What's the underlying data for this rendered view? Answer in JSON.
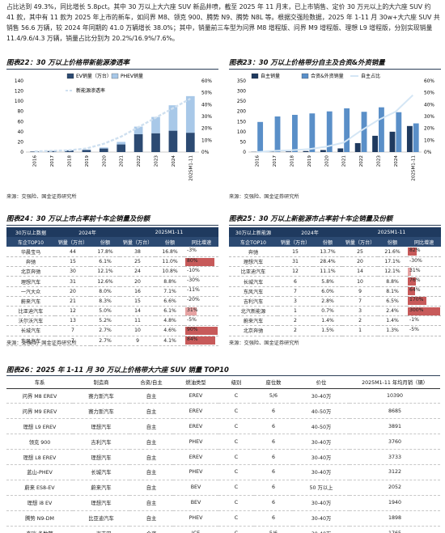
{
  "intro": "占比达到 49.3%，同比增长 5.8pct。其中 30 万以上大六座 SUV 新品井喷，截至 2025 年 11 月末，已上市销售、定价 30 万元以上的大六座 SUV 约 41 款，其中有 11 款为 2025 年上市的新车，如问界 M8、领克 900、腾势 N9、腾势 N8L 等。根据交强险数据，2025 年 1-11 月 30w+大六座 SUV 共销售 56.6 万辆，较 2024 年同期的 41.0 万辆增长 38.0%；其中，销量前三车型为问界 M8 增程版、问界 M9 增程版、理想 L9 增程版，分别实现销量 11.4/9.6/4.3 万辆，销量占比分别为 20.2%/16.9%/7.6%。",
  "fig22": {
    "title": "图表22：30 万以上价格带新能源渗透率",
    "source": "来源：交强险、国金证券研究所",
    "legend": [
      "EV销量（万台）",
      "PHEV销量",
      "新能源渗透率"
    ],
    "chart_data": {
      "type": "bar",
      "categories": [
        "2016",
        "2017",
        "2018",
        "2019",
        "2020",
        "2021",
        "2022",
        "2023",
        "2024",
        "2025M1-11"
      ],
      "series": [
        {
          "name": "EV销量（万台）",
          "values": [
            1,
            2,
            3,
            4,
            7,
            15,
            35,
            37,
            42,
            38
          ]
        },
        {
          "name": "PHEV销量",
          "values": [
            0,
            0,
            1,
            1,
            2,
            5,
            15,
            32,
            50,
            72
          ]
        },
        {
          "name": "新能源渗透率",
          "values": [
            0.5,
            1,
            1.5,
            3,
            7,
            13,
            21,
            29,
            37,
            45
          ]
        }
      ],
      "yleft": [
        0,
        140
      ],
      "yleft_ticks": [
        "0",
        "20",
        "40",
        "60",
        "80",
        "100",
        "120",
        "140"
      ],
      "yright": [
        0,
        60
      ],
      "yright_ticks": [
        "0%",
        "10%",
        "20%",
        "30%",
        "40%",
        "50%",
        "60%"
      ]
    }
  },
  "fig23": {
    "title": "图表23：30 万以上价格带分自主及合资&外资销量",
    "source": "来源：交强险、国金证券研究所",
    "legend": [
      "自主销量",
      "合资&外资销量",
      "自主占比"
    ],
    "chart_data": {
      "type": "bar",
      "categories": [
        "2016",
        "2017",
        "2018",
        "2019",
        "2020",
        "2021",
        "2022",
        "2023",
        "2024",
        "2025M1-11"
      ],
      "series": [
        {
          "name": "自主销量",
          "values": [
            1,
            2,
            3,
            5,
            10,
            18,
            44,
            80,
            100,
            128
          ]
        },
        {
          "name": "合资&外资销量",
          "values": [
            148,
            175,
            183,
            190,
            200,
            215,
            198,
            220,
            196,
            141
          ]
        },
        {
          "name": "自主占比",
          "values": [
            0,
            1,
            1.5,
            2.5,
            4.5,
            8,
            18,
            27,
            34,
            48
          ]
        }
      ],
      "yleft": [
        0,
        350
      ],
      "yleft_ticks": [
        "0",
        "50",
        "100",
        "150",
        "200",
        "250",
        "300",
        "350"
      ],
      "yright": [
        0,
        60
      ],
      "yright_ticks": [
        "0%",
        "10%",
        "20%",
        "30%",
        "40%",
        "50%",
        "60%"
      ]
    }
  },
  "fig24": {
    "title": "图表24：30 万以上市占率前十车企销量及份额",
    "source": "来源：交强险、国金证券研究所",
    "head1": [
      "30万以上数据",
      "2024年",
      "",
      "2025M1-11",
      ""
    ],
    "head2": [
      "车企TOP10",
      "销量（万台）",
      "份额",
      "销量（万台）",
      "份额",
      "同比增速"
    ],
    "rows": [
      [
        "华晨宝马",
        "44",
        "17.8%",
        "38",
        "16.8%",
        "-3%"
      ],
      [
        "奔驰",
        "15",
        "6.1%",
        "25",
        "11.0%",
        "80%"
      ],
      [
        "北京奔驰",
        "30",
        "12.1%",
        "24",
        "10.8%",
        "-10%"
      ],
      [
        "理想汽车",
        "31",
        "12.6%",
        "20",
        "8.8%",
        "-30%"
      ],
      [
        "一汽大众",
        "20",
        "8.0%",
        "16",
        "7.1%",
        "-11%"
      ],
      [
        "蔚来汽车",
        "21",
        "8.3%",
        "15",
        "6.6%",
        "-20%"
      ],
      [
        "比亚迪汽车",
        "12",
        "5.0%",
        "14",
        "6.1%",
        "31%"
      ],
      [
        "沃尔沃汽车",
        "13",
        "5.2%",
        "11",
        "4.8%",
        "-5%"
      ],
      [
        "长城汽车",
        "7",
        "2.7%",
        "10",
        "4.6%",
        "90%"
      ],
      [
        "东风汽车",
        "7",
        "2.7%",
        "9",
        "4.1%",
        "84%"
      ]
    ],
    "growth": [
      -3,
      80,
      -10,
      -30,
      -11,
      -20,
      31,
      -5,
      90,
      84
    ]
  },
  "fig25": {
    "title": "图表25：30 万以上新能源市占率前十车企销量及份额",
    "source": "来源：交强险、国金证券研究所",
    "head1": [
      "30万以上新能源",
      "2024年",
      "",
      "2025M1-11",
      ""
    ],
    "head2": [
      "车企TOP10",
      "销量（万台）",
      "份额",
      "销量（万台）",
      "份额",
      "同比增速"
    ],
    "rows": [
      [
        "奔驰",
        "15",
        "13.7%",
        "25",
        "21.6%",
        "82%"
      ],
      [
        "理想汽车",
        "31",
        "28.4%",
        "20",
        "17.1%",
        "-30%"
      ],
      [
        "比亚迪汽车",
        "12",
        "11.1%",
        "14",
        "12.1%",
        "31%"
      ],
      [
        "长城汽车",
        "6",
        "5.8%",
        "10",
        "8.8%",
        "76%"
      ],
      [
        "东风汽车",
        "7",
        "6.0%",
        "9",
        "8.1%",
        "64%"
      ],
      [
        "吉利汽车",
        "3",
        "2.8%",
        "7",
        "6.5%",
        "170%"
      ],
      [
        "北汽新能源",
        "1",
        "0.7%",
        "3",
        "2.4%",
        "300%"
      ],
      [
        "蔚来汽车",
        "2",
        "1.4%",
        "2",
        "1.4%",
        "-1%"
      ],
      [
        "北京奔驰",
        "2",
        "1.5%",
        "1",
        "1.3%",
        "-5%"
      ]
    ],
    "growth": [
      82,
      -30,
      31,
      76,
      64,
      170,
      300,
      -1,
      -5
    ]
  },
  "fig26": {
    "title": "图表26：2025 年 1-11 月 30 万以上价格带大六座 SUV 销量 TOP10",
    "source": "",
    "head": [
      "车系",
      "制造商",
      "合资/自主",
      "燃油类型",
      "级别",
      "座位数",
      "价位",
      "2025M1-11 年均月销（辆）"
    ],
    "rows": [
      [
        "问界 M8 EREV",
        "赛力斯汽车",
        "自主",
        "EREV",
        "C",
        "5/6",
        "30-40万",
        "10390"
      ],
      [
        "问界 M9 EREV",
        "赛力斯汽车",
        "自主",
        "EREV",
        "C",
        "6",
        "40-50万",
        "8685"
      ],
      [
        "理想 L9 EREV",
        "理想汽车",
        "自主",
        "EREV",
        "C",
        "6",
        "40-50万",
        "3891"
      ],
      [
        "领克 900",
        "吉利汽车",
        "自主",
        "PHEV",
        "C",
        "6",
        "30-40万",
        "3760"
      ],
      [
        "理想 L8 EREV",
        "理想汽车",
        "自主",
        "EREV",
        "C",
        "6",
        "30-40万",
        "3733"
      ],
      [
        "蓝山-PHEV",
        "长城汽车",
        "自主",
        "PHEV",
        "C",
        "6",
        "30-40万",
        "3122"
      ],
      [
        "蔚来 ES8-EV",
        "蔚来汽车",
        "自主",
        "BEV",
        "C",
        "6",
        "50 万以上",
        "2052"
      ],
      [
        "理想 i8 EV",
        "理想汽车",
        "自主",
        "BEV",
        "C",
        "6",
        "30-40万",
        "1940"
      ],
      [
        "腾势 N9-DM",
        "比亚迪汽车",
        "自主",
        "PHEV",
        "C",
        "6",
        "30-40万",
        "1898"
      ],
      [
        "奇瑞 多数擎",
        "一汽丰田",
        "合资",
        "ICE",
        "C",
        "5/6",
        "30-40万",
        "1765"
      ]
    ]
  }
}
